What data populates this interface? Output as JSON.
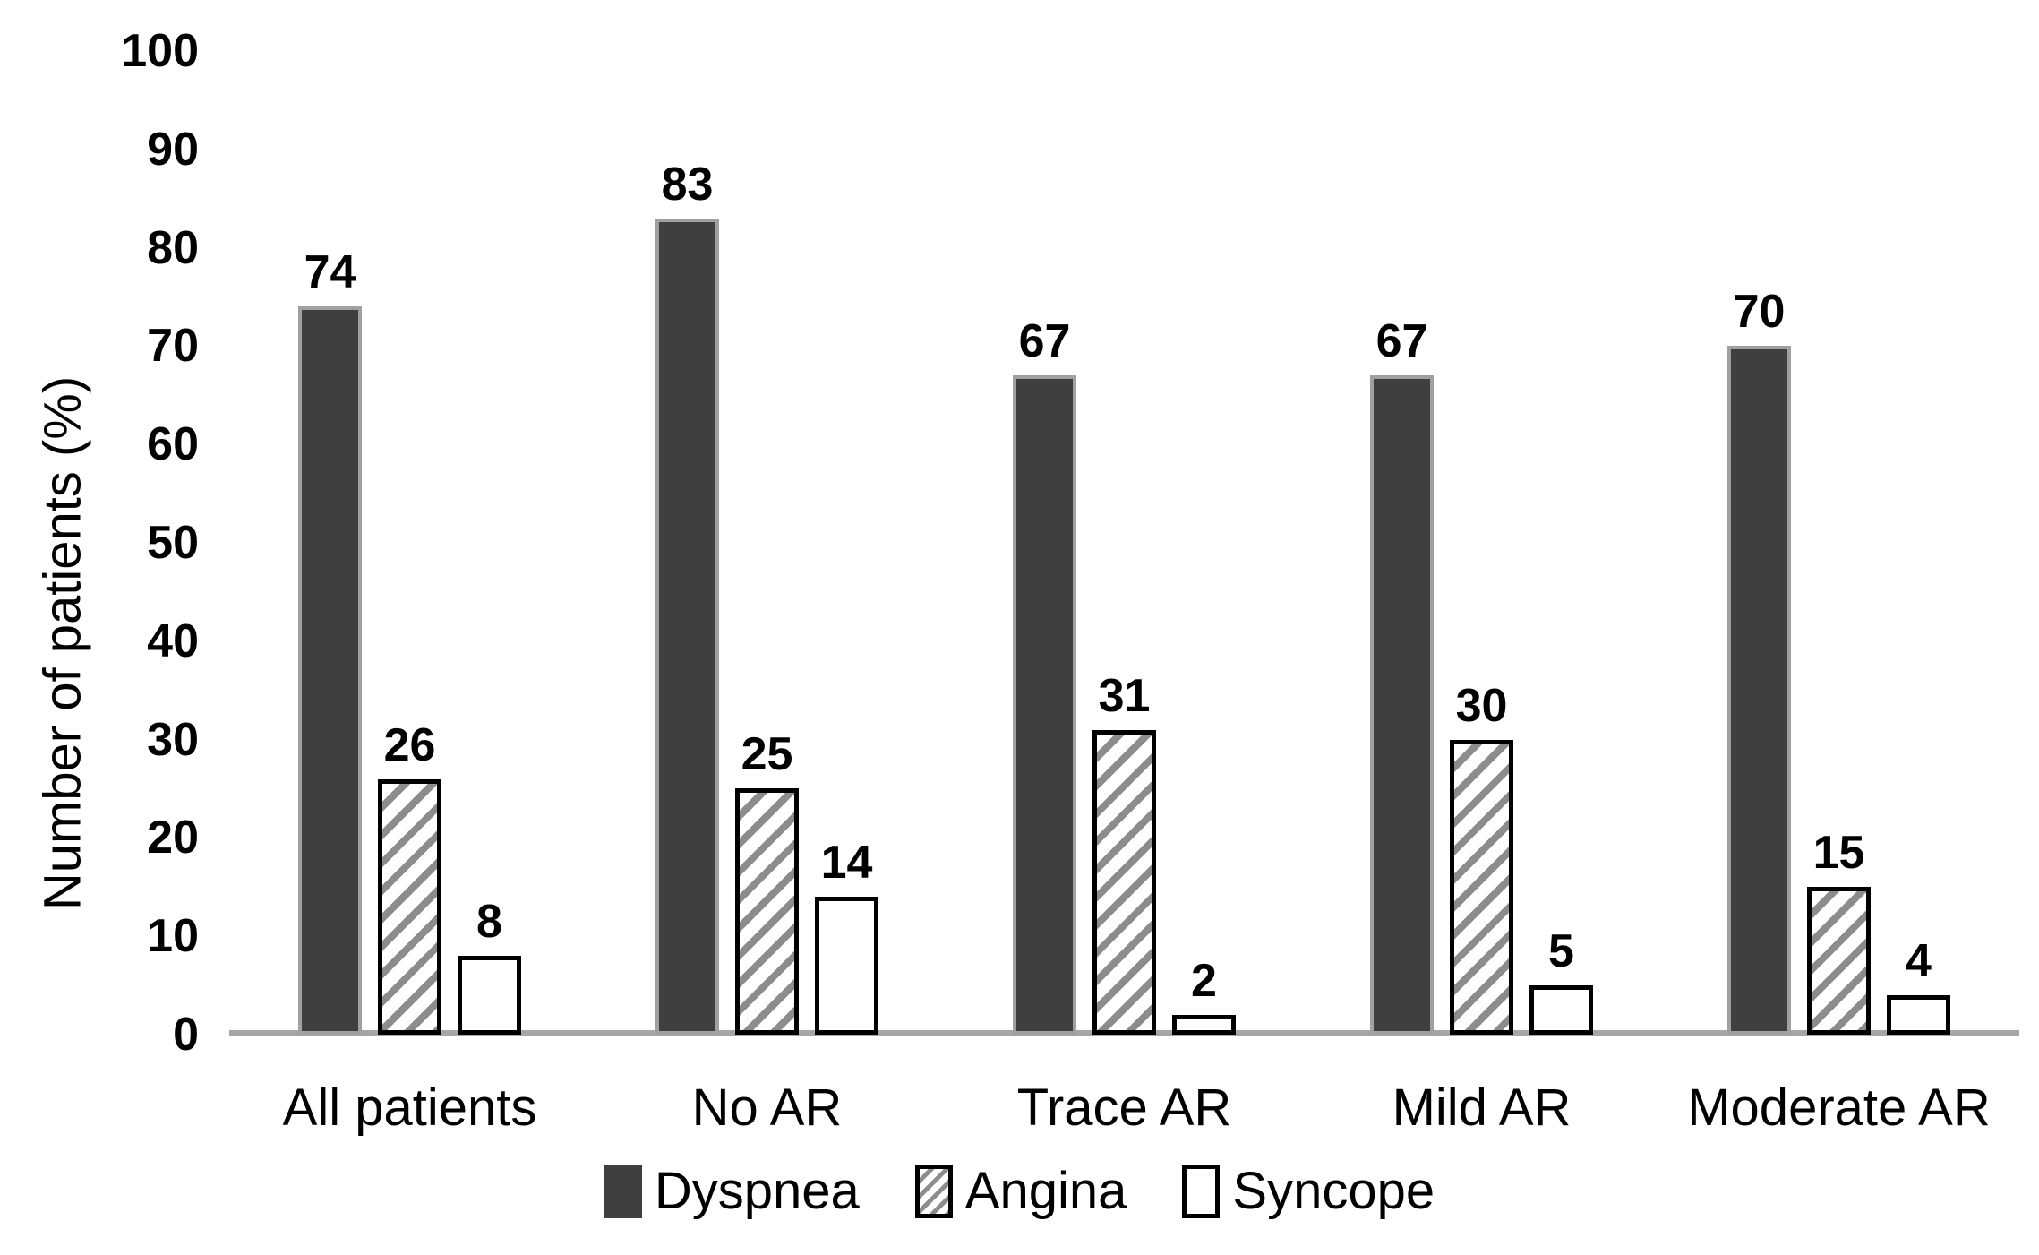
{
  "chart_data": {
    "type": "bar",
    "title": "",
    "categories": [
      "All patients",
      "No AR",
      "Trace AR",
      "Mild AR",
      "Moderate AR"
    ],
    "series": [
      {
        "name": "Dyspnea",
        "style": "solid-dark",
        "values": [
          74,
          83,
          67,
          67,
          70
        ]
      },
      {
        "name": "Angina",
        "style": "hatched",
        "values": [
          26,
          25,
          31,
          30,
          15
        ]
      },
      {
        "name": "Syncope",
        "style": "outline",
        "values": [
          8,
          14,
          2,
          5,
          4
        ]
      }
    ],
    "ylabel": "Number of patients (%)",
    "ylim": [
      0,
      100
    ],
    "yticks": [
      0,
      10,
      20,
      30,
      40,
      50,
      60,
      70,
      80,
      90,
      100
    ],
    "grid": false,
    "data_labels": true,
    "legend_position": "bottom"
  },
  "colors": {
    "background": "#ffffff",
    "bar_dark": "#3f3f3f",
    "bar_dark_edge": "#a0a0a0",
    "hatch_stripe": "#8c8c8c",
    "axis_line": "#a6a6a6",
    "text": "#000000"
  }
}
